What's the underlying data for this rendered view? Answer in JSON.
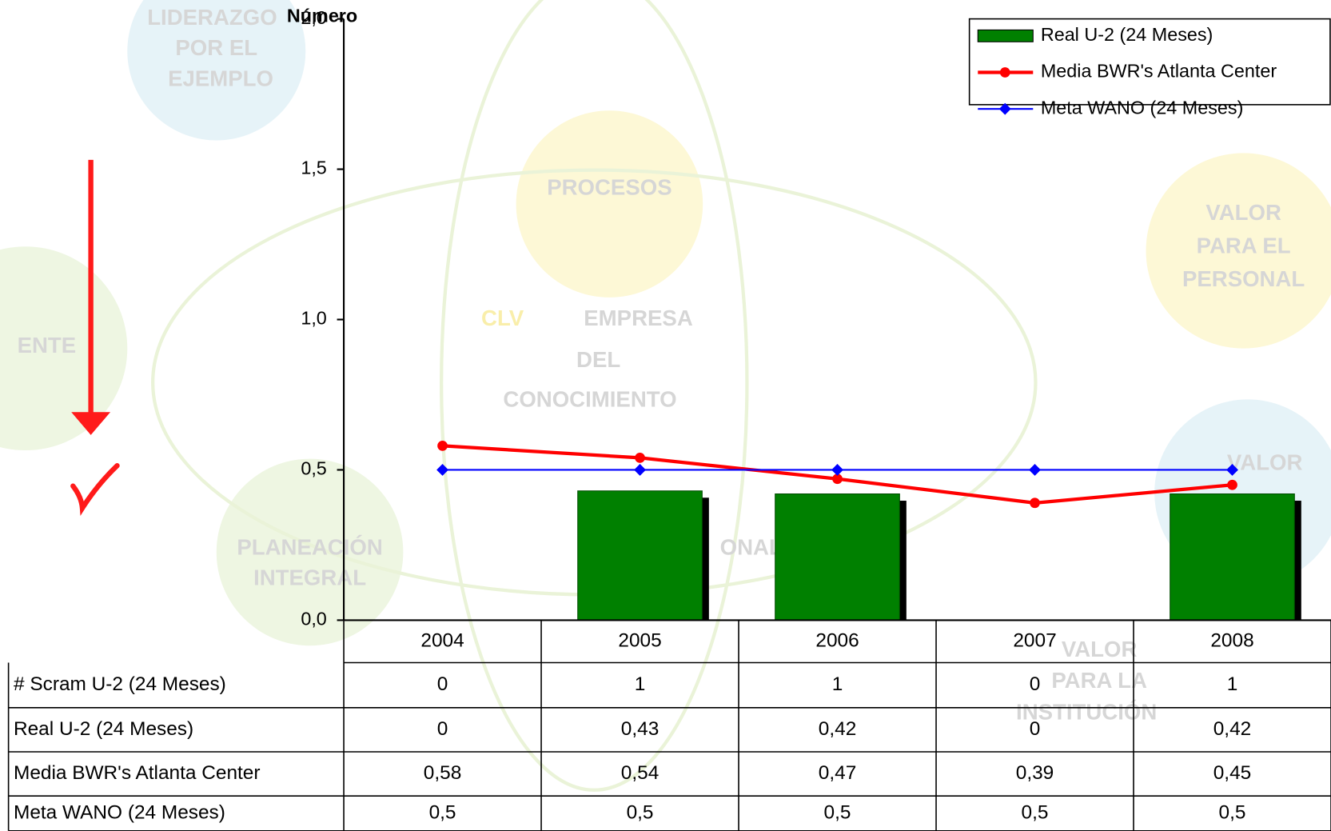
{
  "chart_data": {
    "type": "bar",
    "y_label": "Número",
    "ylim": [
      0,
      2
    ],
    "yticks": [
      {
        "value": 0,
        "label": "0,0"
      },
      {
        "value": 0.5,
        "label": "0,5"
      },
      {
        "value": 1,
        "label": "1,0"
      },
      {
        "value": 1.5,
        "label": "1,5"
      },
      {
        "value": 2,
        "label": "2,0"
      }
    ],
    "categories": [
      "2004",
      "2005",
      "2006",
      "2007",
      "2008"
    ],
    "series": [
      {
        "name": "Real U-2 (24 Meses)",
        "type": "bar",
        "color": "#008000",
        "values": [
          0,
          0.43,
          0.42,
          0,
          0.42
        ],
        "value_labels": [
          "0",
          "0,43",
          "0,42",
          "0",
          "0,42"
        ]
      },
      {
        "name": "Media BWR's Atlanta Center",
        "type": "line",
        "color": "#ff0000",
        "values": [
          0.58,
          0.54,
          0.47,
          0.39,
          0.45
        ],
        "value_labels": [
          "0,58",
          "0,54",
          "0,47",
          "0,39",
          "0,45"
        ]
      },
      {
        "name": "Meta WANO (24 Meses)",
        "type": "line",
        "color": "#0000ff",
        "values": [
          0.5,
          0.5,
          0.5,
          0.5,
          0.5
        ],
        "value_labels": [
          "0,5",
          "0,5",
          "0,5",
          "0,5",
          "0,5"
        ]
      }
    ],
    "extra_row": {
      "name": "# Scram U-2 (24 Meses)",
      "values": [
        0,
        1,
        1,
        0,
        1
      ]
    },
    "legend": "top-right",
    "background_labels": [
      "LIDERAZGO",
      "POR EL",
      "EJEMPLO",
      "PROCESOS",
      "VALOR",
      "PARA EL",
      "PERSONAL",
      "CLV",
      "EMPRESA",
      "DEL",
      "CONOCIMIENTO",
      "ENTE",
      "VALOR",
      "PLANEACIÓN",
      "INTEGRAL",
      "ONAL",
      "VALOR",
      "PARA LA",
      "INSTITUCIÓN"
    ]
  }
}
